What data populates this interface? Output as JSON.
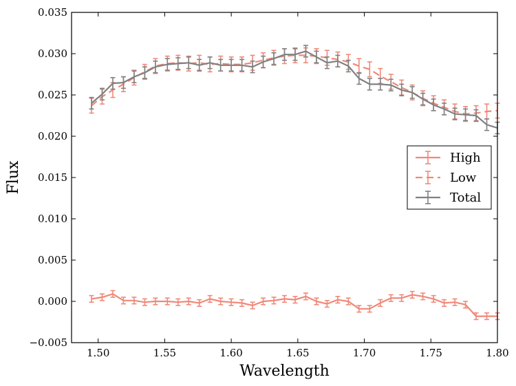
{
  "chart_data": {
    "type": "line",
    "title": "",
    "xlabel": "Wavelength",
    "ylabel": "Flux",
    "xlim": [
      1.48,
      1.8
    ],
    "ylim": [
      -0.005,
      0.035
    ],
    "xticks": [
      1.5,
      1.55,
      1.6,
      1.65,
      1.7,
      1.75,
      1.8
    ],
    "xtick_labels": [
      "1.50",
      "1.55",
      "1.60",
      "1.65",
      "1.70",
      "1.75",
      "1.80"
    ],
    "yticks": [
      -0.005,
      0.0,
      0.005,
      0.01,
      0.015,
      0.02,
      0.025,
      0.03,
      0.035
    ],
    "ytick_labels": [
      "−0.005",
      "0.000",
      "0.005",
      "0.010",
      "0.015",
      "0.020",
      "0.025",
      "0.030",
      "0.035"
    ],
    "grid": false,
    "legend": {
      "placement": "center-right"
    },
    "x": [
      1.495,
      1.503,
      1.511,
      1.519,
      1.527,
      1.535,
      1.543,
      1.552,
      1.56,
      1.568,
      1.576,
      1.584,
      1.592,
      1.6,
      1.608,
      1.616,
      1.624,
      1.632,
      1.64,
      1.648,
      1.656,
      1.664,
      1.672,
      1.68,
      1.688,
      1.696,
      1.704,
      1.712,
      1.72,
      1.728,
      1.736,
      1.744,
      1.752,
      1.76,
      1.768,
      1.776,
      1.784,
      1.792,
      1.8
    ],
    "series": [
      {
        "name": "High",
        "color": "#f08878",
        "dash": "solid",
        "values": [
          0.0003,
          0.0005,
          0.0009,
          0.0001,
          0.0001,
          -0.0001,
          0.0,
          0.0,
          -0.0001,
          0.0,
          -0.0002,
          0.0003,
          0.0,
          -0.0001,
          -0.0002,
          -0.0005,
          0.0,
          0.0001,
          0.0003,
          0.0002,
          0.0006,
          0.0,
          -0.0003,
          0.0002,
          0.0,
          -0.0009,
          -0.0009,
          -0.0002,
          0.0004,
          0.0004,
          0.0008,
          0.0006,
          0.0003,
          -0.0002,
          -0.0001,
          -0.0004,
          -0.0018,
          -0.0018,
          -0.0018
        ],
        "error": 0.0004
      },
      {
        "name": "Low",
        "color": "#f08878",
        "dash": "dashed",
        "values": [
          0.0237,
          0.0248,
          0.0256,
          0.0263,
          0.0271,
          0.0278,
          0.0285,
          0.0288,
          0.0289,
          0.0288,
          0.0289,
          0.0287,
          0.0288,
          0.0287,
          0.0287,
          0.0289,
          0.0292,
          0.0295,
          0.0297,
          0.0298,
          0.0298,
          0.0297,
          0.0295,
          0.0293,
          0.029,
          0.0285,
          0.0281,
          0.0273,
          0.0266,
          0.0259,
          0.0253,
          0.0246,
          0.024,
          0.0235,
          0.023,
          0.0227,
          0.0228,
          0.023,
          0.0231
        ],
        "error": 0.0009
      },
      {
        "name": "Total",
        "color": "#808080",
        "dash": "solid",
        "values": [
          0.024,
          0.0251,
          0.0264,
          0.0265,
          0.0272,
          0.0277,
          0.0284,
          0.0287,
          0.0288,
          0.0289,
          0.0286,
          0.0289,
          0.0286,
          0.0286,
          0.0286,
          0.0284,
          0.029,
          0.0294,
          0.0299,
          0.0299,
          0.0303,
          0.0296,
          0.0289,
          0.0291,
          0.0285,
          0.027,
          0.0263,
          0.0263,
          0.0262,
          0.0256,
          0.0253,
          0.0245,
          0.0238,
          0.0233,
          0.0227,
          0.0226,
          0.0225,
          0.0214,
          0.021
        ],
        "error": 0.0007
      }
    ]
  }
}
